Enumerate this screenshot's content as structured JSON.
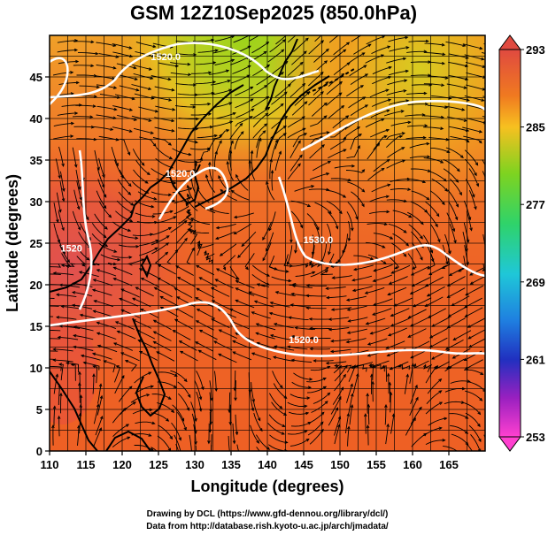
{
  "title": "GSM 12Z10Sep2025 (850.0hPa)",
  "xlabel": "Longitude (degrees)",
  "ylabel": "Latitude  (degrees)",
  "x_ticks": [
    "110",
    "115",
    "120",
    "125",
    "130",
    "135",
    "140",
    "145",
    "150",
    "155",
    "160",
    "165"
  ],
  "y_ticks": [
    "0",
    "5",
    "10",
    "15",
    "20",
    "25",
    "30",
    "35",
    "40",
    "45"
  ],
  "colorbar": {
    "ticks": [
      "293",
      "285",
      "277",
      "269",
      "261",
      "253"
    ],
    "colors": [
      "#e04a40",
      "#f07a20",
      "#f7c020",
      "#7ed320",
      "#2fd36a",
      "#1fc7d8",
      "#1f7fe0",
      "#2030c0",
      "#9a20c0",
      "#ff40d0"
    ]
  },
  "contour_labels": [
    {
      "text": "1520.0",
      "lon": 126,
      "lat": 47
    },
    {
      "text": "1520.0",
      "lon": 128,
      "lat": 33
    },
    {
      "text": "1520",
      "lon": 113,
      "lat": 24
    },
    {
      "text": "1530.0",
      "lon": 147,
      "lat": 25
    },
    {
      "text": "1520.0",
      "lon": 145,
      "lat": 13
    }
  ],
  "credits": [
    "Drawing by DCL (https://www.gfd-dennou.org/library/dcl/)",
    "Data from http://database.rish.kyoto-u.ac.jp/arch/jmadata/"
  ],
  "chart_data": {
    "type": "heatmap",
    "title": "GSM 12Z10Sep2025 (850.0hPa)",
    "xlabel": "Longitude (degrees)",
    "ylabel": "Latitude  (degrees)",
    "xlim": [
      110,
      170
    ],
    "ylim": [
      0,
      50
    ],
    "field": "temperature (K) with geopotential height contours and wind streamlines",
    "colorbar_range": [
      253,
      293
    ],
    "contour_levels": [
      1520,
      1530
    ]
  }
}
